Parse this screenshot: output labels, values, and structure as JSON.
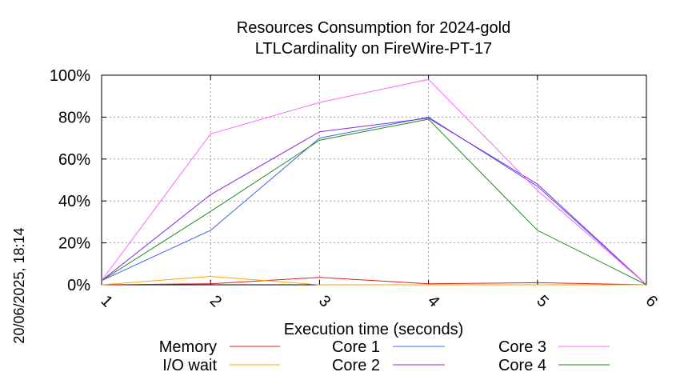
{
  "chart_data": {
    "type": "line",
    "title": "Resources Consumption for 2024-gold",
    "subtitle": "LTLCardinality on FireWire-PT-17",
    "xlabel": "Execution time (seconds)",
    "ylabel": "",
    "side_label": "20/06/2025, 18:14",
    "x": [
      1,
      2,
      3,
      4,
      5,
      6
    ],
    "x_tick_labels": [
      "1",
      "2",
      "3",
      "4",
      "5",
      "6"
    ],
    "xlim": [
      1,
      6
    ],
    "ylim": [
      0,
      100
    ],
    "y_tick_values": [
      0,
      20,
      40,
      60,
      80,
      100
    ],
    "y_tick_labels": [
      "0%",
      "20%",
      "40%",
      "60%",
      "80%",
      "100%"
    ],
    "grid": true,
    "legend_position": "bottom",
    "series": [
      {
        "name": "Memory",
        "color": "#e41a1c",
        "values": [
          0,
          0.5,
          3.5,
          0.5,
          1,
          0
        ]
      },
      {
        "name": "I/O wait",
        "color": "#ffa500",
        "values": [
          0,
          4,
          0,
          0,
          0,
          0
        ]
      },
      {
        "name": "Core 1",
        "color": "#4169e1",
        "values": [
          2,
          26,
          70,
          80,
          47,
          0
        ]
      },
      {
        "name": "Core 2",
        "color": "#8a2be2",
        "values": [
          2,
          43,
          73,
          79.5,
          48,
          0
        ]
      },
      {
        "name": "Core 3",
        "color": "#ff66ff",
        "values": [
          2,
          72,
          87,
          98,
          45,
          0
        ]
      },
      {
        "name": "Core 4",
        "color": "#228b22",
        "values": [
          2,
          35,
          69,
          79,
          26,
          0
        ]
      }
    ]
  }
}
